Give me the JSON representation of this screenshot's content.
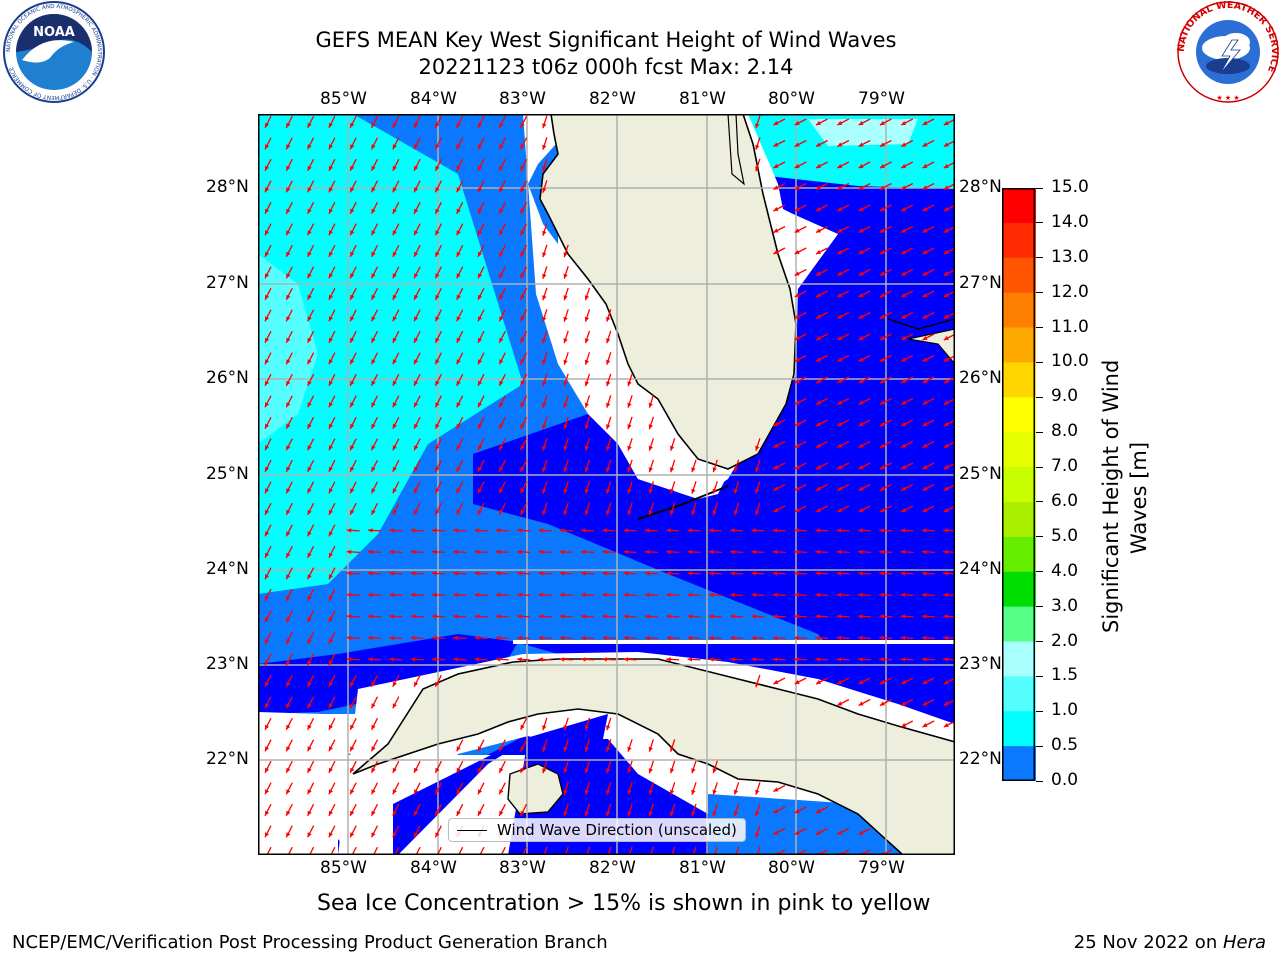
{
  "title": {
    "line1": "GEFS MEAN Key West Significant Height of Wind Waves",
    "line2": "20221123 t06z 000h fcst   Max: 2.14"
  },
  "map": {
    "lon_labels": [
      "85°W",
      "84°W",
      "83°W",
      "82°W",
      "81°W",
      "80°W",
      "79°W"
    ],
    "lat_labels": [
      "28°N",
      "27°N",
      "26°N",
      "25°N",
      "24°N",
      "23°N",
      "22°N"
    ],
    "legend_label": "Wind Wave Direction (unscaled)",
    "colors": {
      "land": "#eeeedc",
      "ocean_0_05": "#0000ff",
      "ocean_05_1": "#0a78ff",
      "ocean_1_15": "#00ffff",
      "ocean_15_2": "#55ffff",
      "ocean_2_3": "#aaffff",
      "arrows": "#ff0000",
      "grid": "#b0b0b0"
    }
  },
  "colorbar": {
    "title_line1": "Significant Height of Wind",
    "title_line2": "Waves [m]",
    "levels": [
      "15.0",
      "14.0",
      "13.0",
      "12.0",
      "11.0",
      "10.0",
      "9.0",
      "8.0",
      "7.0",
      "6.0",
      "5.0",
      "4.0",
      "3.0",
      "2.0",
      "1.5",
      "1.0",
      "0.5",
      "0.0"
    ],
    "colors": [
      "#ff0000",
      "#ff2a00",
      "#ff5500",
      "#ff8000",
      "#ffaa00",
      "#ffd500",
      "#ffff00",
      "#e6ff00",
      "#c8ff00",
      "#aaee00",
      "#66ee00",
      "#00dd00",
      "#55ff88",
      "#aaffff",
      "#55ffff",
      "#00ffff",
      "#0a78ff",
      "#0000ff"
    ]
  },
  "logos": {
    "noaa_text": "NOAA",
    "noaa_ring": "NATIONAL OCEANIC AND ATMOSPHERIC ADMINISTRATION · U.S. DEPARTMENT OF COMMERCE",
    "nws_ring": "NATIONAL WEATHER SERVICE"
  },
  "note": "Sea Ice Concentration > 15% is shown in pink to yellow",
  "footer": {
    "left": "NCEP/EMC/Verification Post Processing Product Generation Branch",
    "right_date": "25 Nov 2022 on ",
    "right_host": "Hera"
  }
}
